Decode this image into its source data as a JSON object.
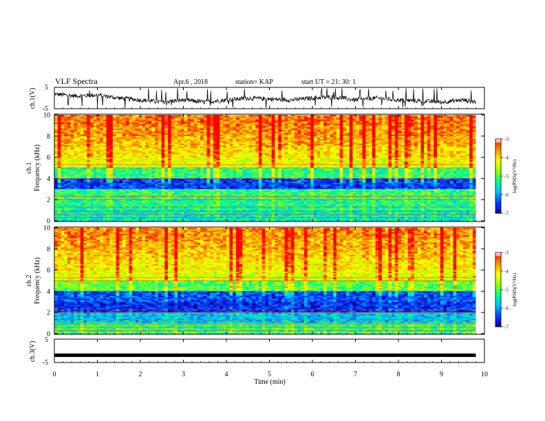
{
  "header": {
    "title": "VLF Spectra",
    "date": "Apr.6 , 2018",
    "station": "station= KAP",
    "start": "start UT = 21: 30: 1"
  },
  "panels": {
    "ch1_wave_label": "ch.1(V)",
    "ch3_wave_label": "ch.3(V)",
    "ch1_spec_label": "ch.1",
    "ch2_spec_label": "ch.2",
    "freq_label": "Frequency (kHz)",
    "colorbar_label": "log(PSD)(V²/Hz)",
    "xlabel": "Time (min)"
  },
  "colors": {
    "colormap": [
      "#0000b0",
      "#0040ff",
      "#00c0ff",
      "#00ff90",
      "#a0ff00",
      "#ffff00",
      "#ff9000",
      "#ff0000",
      "#ffffff"
    ]
  },
  "chart_data": [
    {
      "type": "line",
      "name": "ch1_waveform",
      "ylabel": "ch.1(V)",
      "ylim": [
        -5,
        5
      ],
      "yticks": [
        "5",
        "-5"
      ],
      "xlim": [
        0,
        10
      ],
      "x": [
        0,
        0.5,
        1,
        1.5,
        2,
        2.5,
        3,
        3.5,
        4,
        4.5,
        5,
        5.5,
        6,
        6.5,
        7,
        7.5,
        8,
        8.5,
        9,
        9.5,
        9.8
      ],
      "values": [
        2,
        1,
        1.5,
        0,
        -1,
        -2,
        -1,
        -2,
        -1,
        0,
        -0.5,
        -1,
        0,
        0.5,
        -1,
        0,
        -1,
        -1.5,
        -2,
        -1,
        -2
      ]
    },
    {
      "type": "heatmap",
      "name": "ch1_spectrogram",
      "ylabel": "Frequency (kHz)",
      "ylim": [
        0,
        10
      ],
      "xlim": [
        0,
        10
      ],
      "yticks": [
        "0",
        "2",
        "4",
        "6",
        "8",
        "10"
      ],
      "zlim": [
        -7,
        -3
      ],
      "colorbar_ticks": [
        "-3",
        "-4",
        "-5",
        "-6",
        "-7"
      ],
      "freq_bands_khz": [
        0,
        1,
        2,
        3,
        4,
        5,
        6,
        7,
        8,
        9,
        10
      ],
      "log_psd_profile": [
        -5.5,
        -5.3,
        -5.2,
        -6.5,
        -5.2,
        -4.3,
        -4.0,
        -3.8,
        -3.6,
        -3.5
      ]
    },
    {
      "type": "heatmap",
      "name": "ch2_spectrogram",
      "ylabel": "Frequency (kHz)",
      "ylim": [
        0,
        10
      ],
      "xlim": [
        0,
        10
      ],
      "yticks": [
        "0",
        "2",
        "4",
        "6",
        "8",
        "10"
      ],
      "zlim": [
        -7,
        -3
      ],
      "colorbar_ticks": [
        "-3",
        "-4",
        "-5",
        "-6",
        "-7"
      ],
      "freq_bands_khz": [
        0,
        1,
        2,
        3,
        4,
        5,
        6,
        7,
        8,
        9,
        10
      ],
      "log_psd_profile": [
        -5.2,
        -5.8,
        -6.6,
        -6.4,
        -5.0,
        -4.3,
        -4.1,
        -3.9,
        -3.7,
        -3.6
      ]
    },
    {
      "type": "line",
      "name": "ch3_waveform",
      "ylabel": "ch.3(V)",
      "ylim": [
        -5,
        5
      ],
      "yticks": [
        "5",
        "-5"
      ],
      "xlim": [
        0,
        10
      ],
      "x": [
        0,
        9.8
      ],
      "values": [
        -2,
        -2
      ]
    }
  ],
  "xaxis": {
    "ticks": [
      "0",
      "1",
      "2",
      "3",
      "4",
      "5",
      "6",
      "7",
      "8",
      "9",
      "10"
    ]
  }
}
